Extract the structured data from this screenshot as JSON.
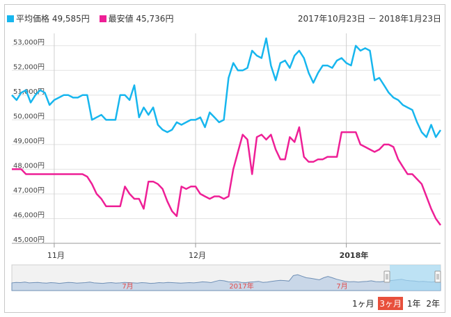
{
  "legend": {
    "avg": {
      "label": "平均価格 49,585円",
      "color": "#17b6ee"
    },
    "min": {
      "label": "最安値 45,736円",
      "color": "#ee1f96"
    }
  },
  "date_range": "2017年10月23日 － 2018年1月23日",
  "range_buttons": [
    "1ヶ月",
    "3ヶ月",
    "1年",
    "2年"
  ],
  "active_range": "3ヶ月",
  "chart_data": {
    "type": "line",
    "ylim": [
      45000,
      53500
    ],
    "y_ticks": [
      "45,000円",
      "46,000円",
      "47,000円",
      "48,000円",
      "49,000円",
      "50,000円",
      "51,000円",
      "52,000円",
      "53,000円"
    ],
    "x_ticks": [
      {
        "label": "11月",
        "x": 9,
        "bold": false
      },
      {
        "label": "12月",
        "x": 39,
        "bold": false
      },
      {
        "label": "2018年",
        "x": 71,
        "bold": true
      }
    ],
    "series": [
      {
        "name": "平均価格",
        "color": "#17b6ee",
        "values": [
          51000,
          50800,
          51100,
          51200,
          50700,
          51000,
          51200,
          51100,
          50600,
          50800,
          50900,
          51000,
          51000,
          50900,
          50900,
          51000,
          51000,
          50000,
          50100,
          50200,
          50000,
          50000,
          50000,
          51000,
          51000,
          50800,
          51400,
          50100,
          50500,
          50200,
          50500,
          49800,
          49600,
          49500,
          49600,
          49900,
          49800,
          49900,
          50000,
          50000,
          50100,
          49700,
          50300,
          50100,
          49900,
          50000,
          51700,
          52300,
          52000,
          52000,
          52100,
          52800,
          52600,
          52500,
          53300,
          52200,
          51600,
          52300,
          52400,
          52100,
          52600,
          52800,
          52500,
          51900,
          51500,
          51900,
          52200,
          52200,
          52100,
          52400,
          52500,
          52300,
          52200,
          53000,
          52800,
          52900,
          52800,
          51600,
          51700,
          51400,
          51100,
          50900,
          50800,
          50600,
          50500,
          50400,
          49900,
          49500,
          49300,
          49800,
          49300,
          49585
        ]
      },
      {
        "name": "最安値",
        "color": "#ee1f96",
        "values": [
          48000,
          48000,
          48000,
          47800,
          47800,
          47800,
          47800,
          47800,
          47800,
          47800,
          47800,
          47800,
          47800,
          47800,
          47800,
          47800,
          47700,
          47400,
          47000,
          46800,
          46500,
          46500,
          46500,
          46500,
          47300,
          47000,
          46800,
          46800,
          46400,
          47500,
          47500,
          47400,
          47200,
          46700,
          46300,
          46100,
          47300,
          47200,
          47300,
          47300,
          47000,
          46900,
          46800,
          46900,
          46900,
          46800,
          46900,
          48000,
          48700,
          49400,
          49200,
          47800,
          49300,
          49400,
          49200,
          49400,
          48800,
          48400,
          48400,
          49300,
          49100,
          49700,
          48500,
          48300,
          48300,
          48400,
          48400,
          48500,
          48500,
          48500,
          49500,
          49500,
          49500,
          49500,
          49000,
          48900,
          48800,
          48700,
          48800,
          49000,
          49000,
          48900,
          48400,
          48100,
          47800,
          47800,
          47600,
          47400,
          46900,
          46400,
          46000,
          45736
        ]
      }
    ],
    "navigator": {
      "labels": [
        "7月",
        "2017年",
        "7月"
      ],
      "values": [
        0.3,
        0.32,
        0.31,
        0.33,
        0.3,
        0.31,
        0.32,
        0.3,
        0.29,
        0.31,
        0.3,
        0.28,
        0.3,
        0.32,
        0.31,
        0.29,
        0.3,
        0.31,
        0.33,
        0.3,
        0.29,
        0.28,
        0.3,
        0.31,
        0.29,
        0.3,
        0.32,
        0.31,
        0.3,
        0.29,
        0.31,
        0.3,
        0.28,
        0.29,
        0.31,
        0.3,
        0.32,
        0.31,
        0.3,
        0.29,
        0.3,
        0.31,
        0.3,
        0.32,
        0.34,
        0.33,
        0.31,
        0.36,
        0.4,
        0.38,
        0.34,
        0.33,
        0.35,
        0.32,
        0.31,
        0.33,
        0.34,
        0.36,
        0.32,
        0.33,
        0.36,
        0.38,
        0.4,
        0.39,
        0.37,
        0.58,
        0.62,
        0.56,
        0.5,
        0.48,
        0.45,
        0.42,
        0.5,
        0.55,
        0.5,
        0.44,
        0.4,
        0.36,
        0.34,
        0.35,
        0.33,
        0.35,
        0.36,
        0.38,
        0.35,
        0.34,
        0.36,
        0.38,
        0.4,
        0.42,
        0.44,
        0.4,
        0.38,
        0.37,
        0.35,
        0.36,
        0.34,
        0.33,
        0.35,
        0.32
      ]
    }
  }
}
